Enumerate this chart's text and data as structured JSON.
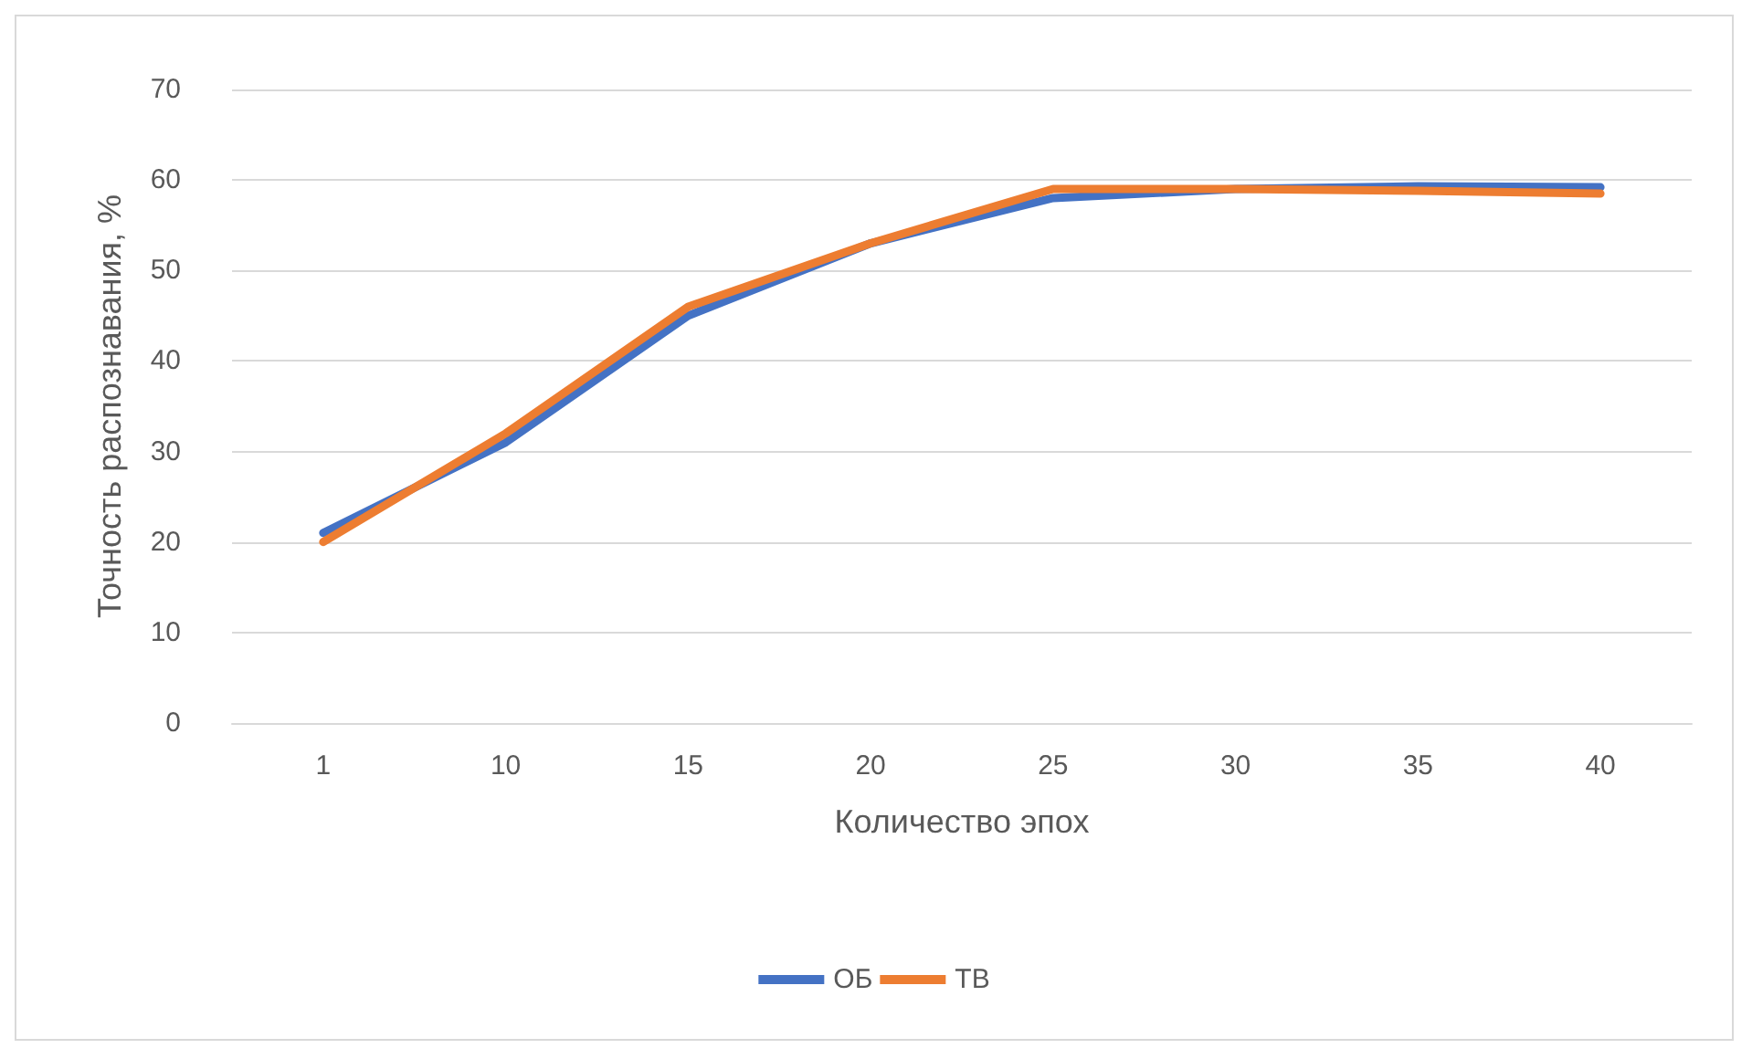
{
  "chart_data": {
    "type": "line",
    "xlabel": "Количество эпох",
    "ylabel": "Точность распознавания, %",
    "categories": [
      "1",
      "10",
      "15",
      "20",
      "25",
      "30",
      "35",
      "40"
    ],
    "series": [
      {
        "name": "ОБ",
        "color": "#4472c4",
        "values": [
          21,
          31,
          45,
          53,
          58,
          59,
          59.3,
          59.2
        ]
      },
      {
        "name": "ТВ",
        "color": "#ed7d31",
        "values": [
          20,
          32,
          46,
          53,
          59,
          59,
          58.8,
          58.5
        ]
      }
    ],
    "ylim": [
      0,
      70
    ],
    "yticks": [
      0,
      10,
      20,
      30,
      40,
      50,
      60,
      70
    ],
    "grid": "y",
    "legend": "bottom",
    "marker": "none",
    "line_style": "solid"
  }
}
